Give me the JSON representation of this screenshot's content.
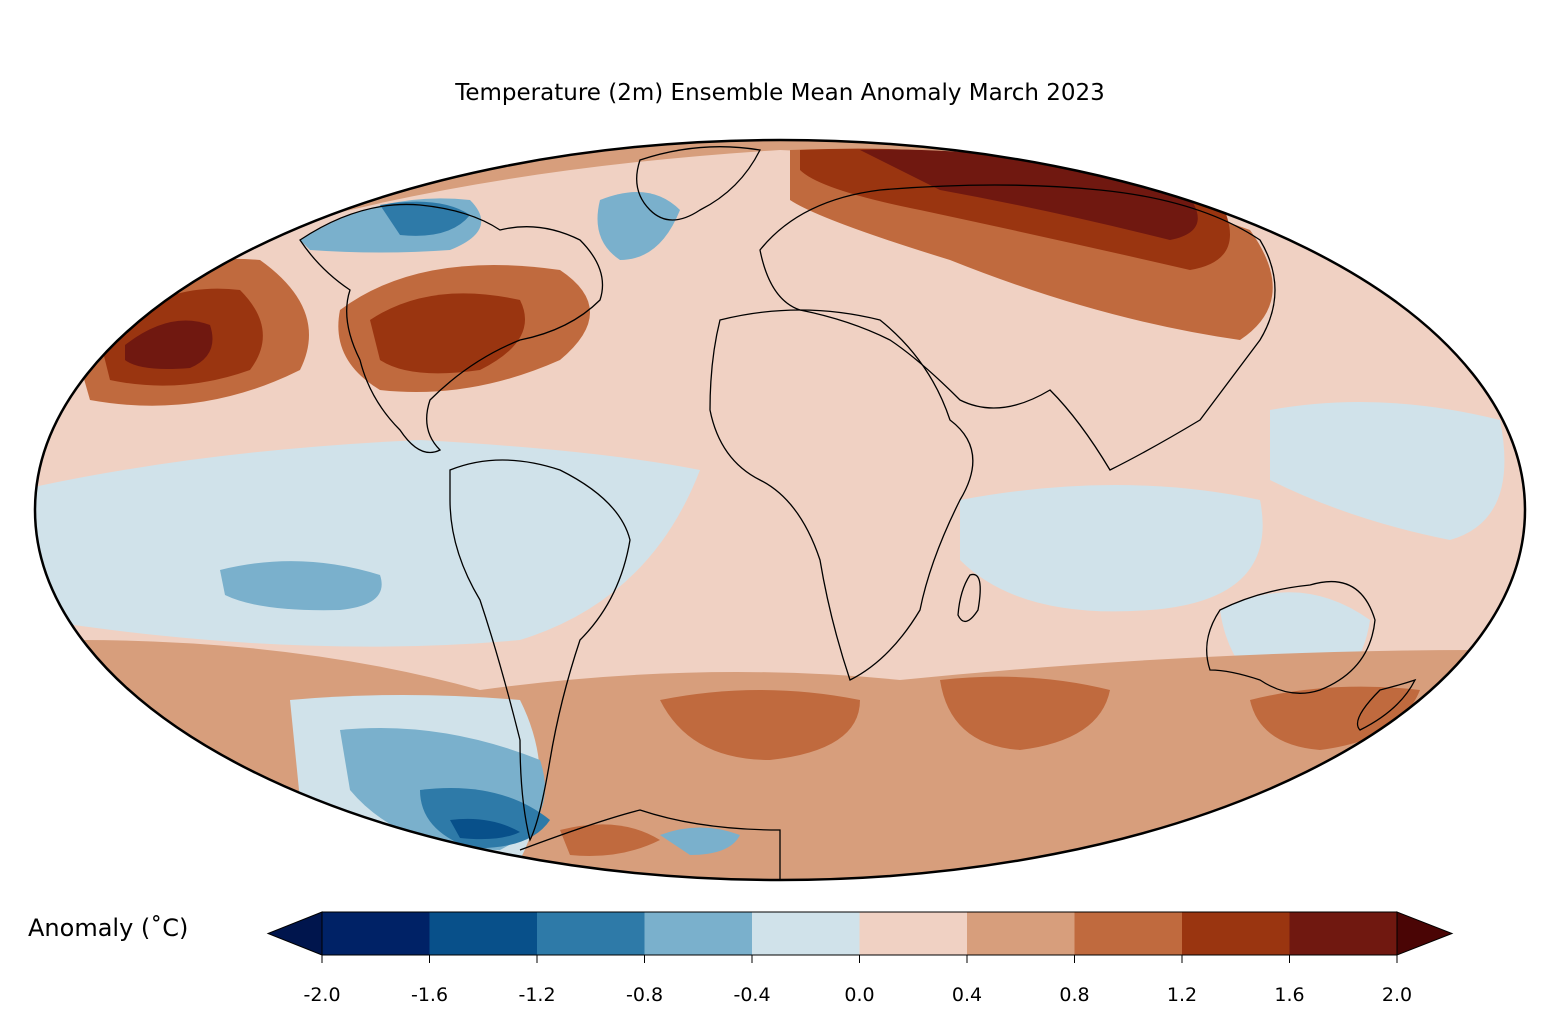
{
  "title": "Temperature (2m) Ensemble Mean Anomaly March 2023",
  "colorbar": {
    "label": "Anomaly (˚C)",
    "ticks": [
      "-2.0",
      "-1.6",
      "-1.2",
      "-0.8",
      "-0.4",
      "0.0",
      "0.4",
      "0.8",
      "1.2",
      "1.6",
      "2.0"
    ],
    "colors": {
      "under": "#00154d",
      "bins": [
        "#002266",
        "#08508a",
        "#2e7aa8",
        "#7ab0cc",
        "#d0e2ea",
        "#f0d1c3",
        "#d79e7c",
        "#c06a3e",
        "#9a3510",
        "#701810"
      ],
      "over": "#4a0505"
    }
  },
  "map": {
    "projection": "Mollweide",
    "ocean_base_color": "#f0d1c3",
    "coastline_color": "#000000",
    "border_color": "#808080"
  }
}
